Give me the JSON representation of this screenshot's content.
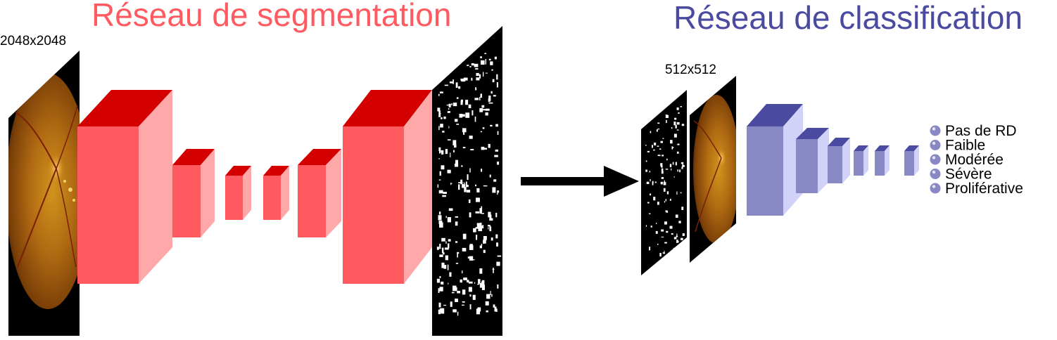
{
  "segmentation": {
    "title": "Réseau de segmentation",
    "input_size": "2048x2048",
    "color_front": "#ff5a5f",
    "color_side": "#ffa8aa",
    "color_top": "#d40000"
  },
  "classification": {
    "title": "Réseau de classification",
    "input_size": "512x512",
    "color_front": "#8888c4",
    "color_side": "#d2d2f8",
    "color_top": "#4a4aa0",
    "classes": [
      "Pas de RD",
      "Faible",
      "Modérée",
      "Sévère",
      "Proliférative"
    ]
  },
  "icons": {
    "arrow": "arrow-right-icon",
    "fundus": "retina-fundus-image",
    "mask": "lesion-mask-image"
  }
}
